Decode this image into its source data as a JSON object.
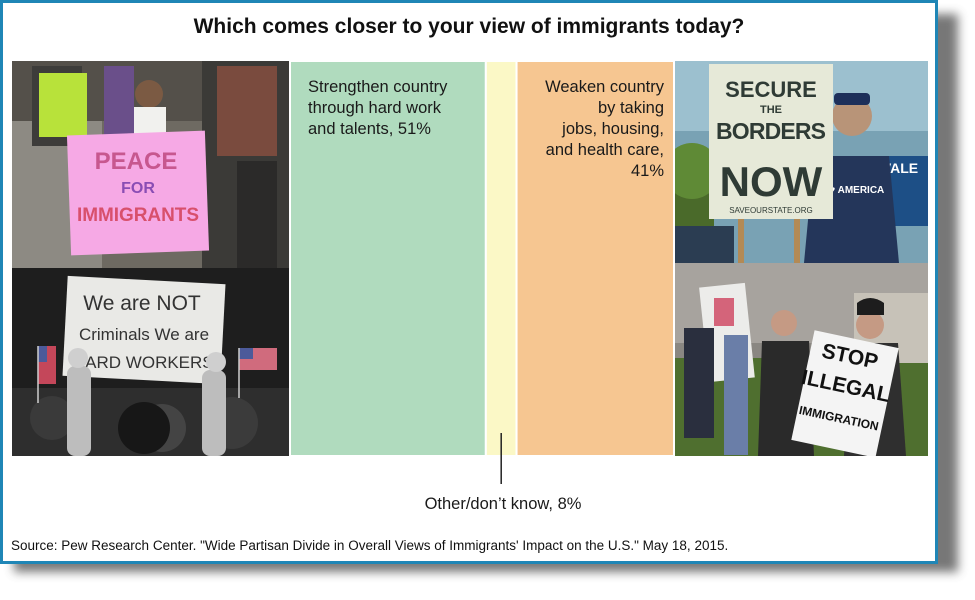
{
  "title": "Which comes closer to your view of immigrants today?",
  "chart_data": {
    "type": "bar",
    "orientation": "horizontal-stacked-100",
    "categories": [
      "Strengthen country through hard work and talents",
      "Other/don’t know",
      "Weaken country by taking jobs, housing, and health care"
    ],
    "values": [
      51,
      8,
      41
    ],
    "unit": "%",
    "colors": [
      "#b0dbbe",
      "#fbf8c6",
      "#f6c691"
    ],
    "labels": [
      [
        "Strengthen country",
        "through hard work",
        "and talents, 51%"
      ],
      [
        "Other/don’t know, 8%"
      ],
      [
        "Weaken country",
        "by taking",
        "jobs, housing,",
        "and health care,",
        "41%"
      ]
    ]
  },
  "photos": {
    "top_left_sign": [
      "PEACE",
      "FOR",
      "IMMIGRANTS"
    ],
    "bottom_left_sign": [
      "We are NOT",
      "Criminals We are",
      "HARD WORKERS!!"
    ],
    "top_right_sign": [
      "SECURE",
      "THE",
      "BORDERS",
      "NOW"
    ],
    "top_right_sign_footer": "SAVEOURSTATE.ORG",
    "top_right_shirt": "I ♥ AMERICA",
    "top_right_bg_sign": "VALE",
    "bottom_right_sign": [
      "STOP",
      "ILLEGAL",
      "IMMIGRATION"
    ]
  },
  "source": "Source: Pew Research Center. \"Wide Partisan Divide in Overall Views of Immigrants' Impact on the U.S.\" May 18, 2015."
}
